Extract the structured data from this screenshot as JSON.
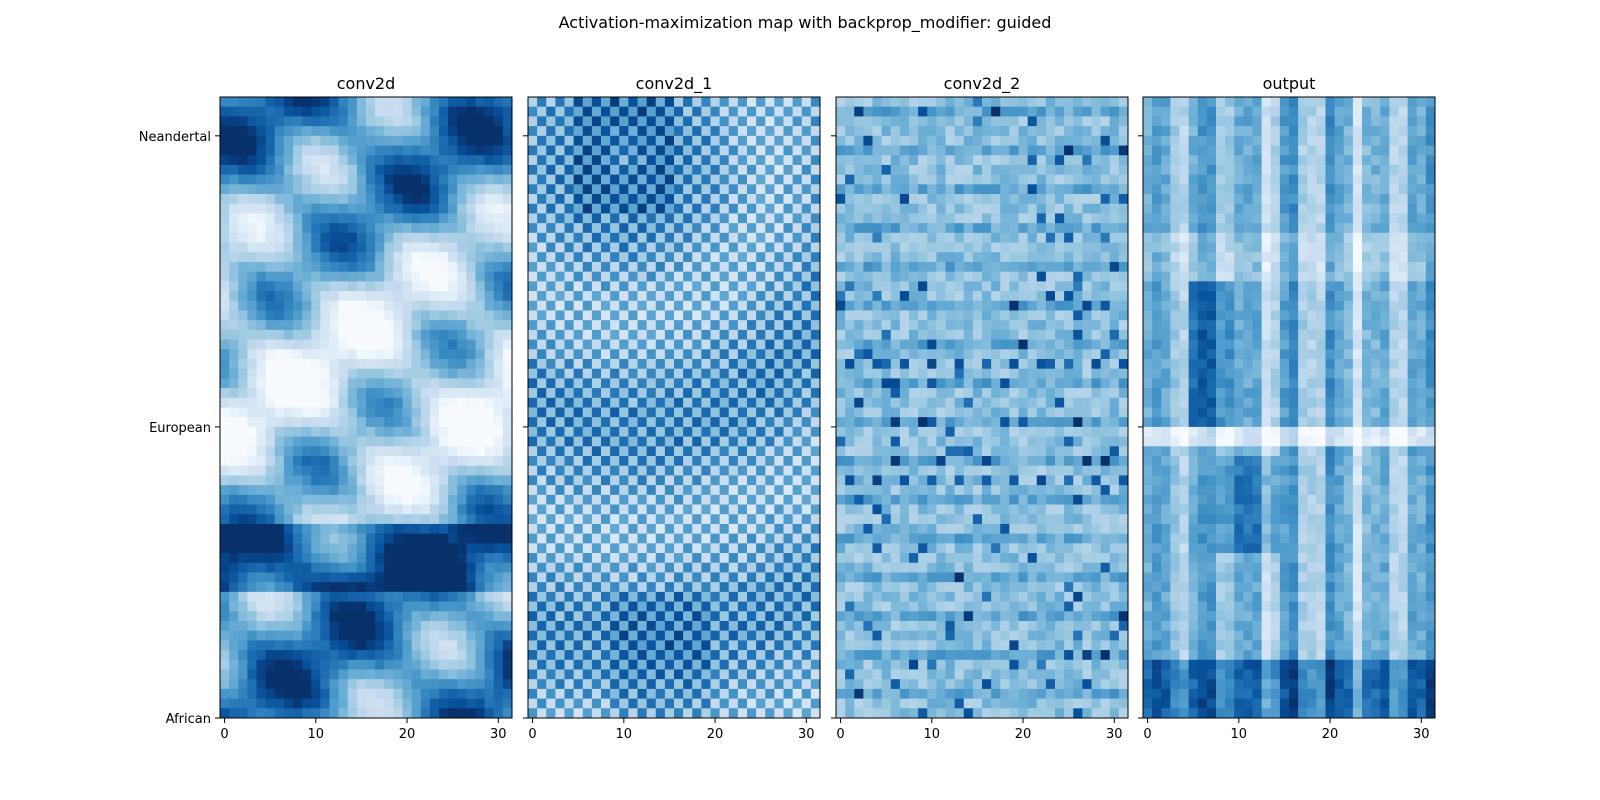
{
  "chart_data": {
    "type": "heatmap",
    "title": "Activation-maximization map with backprop_modifier: guided",
    "colormap": "Blues",
    "colormap_stops": [
      "#f7fbff",
      "#deebf7",
      "#c6dbef",
      "#9ecae1",
      "#6baed6",
      "#4292c6",
      "#2171b5",
      "#08519c",
      "#08306b"
    ],
    "grid": false,
    "shared_y": true,
    "y_ticks": [
      {
        "label": "Neandertal",
        "value": 0
      },
      {
        "label": "European",
        "value": 1
      },
      {
        "label": "African",
        "value": 2
      }
    ],
    "x_ticks": [
      0,
      10,
      20,
      30
    ],
    "x_range": [
      -0.5,
      31.5
    ],
    "rows": 64,
    "cols": 32,
    "panels": [
      {
        "title": "conv2d",
        "pattern": "diagonal-waves"
      },
      {
        "title": "conv2d_1",
        "pattern": "checkerboard"
      },
      {
        "title": "conv2d_2",
        "pattern": "noisy-periodic"
      },
      {
        "title": "output",
        "pattern": "vertical-stripes"
      }
    ]
  }
}
